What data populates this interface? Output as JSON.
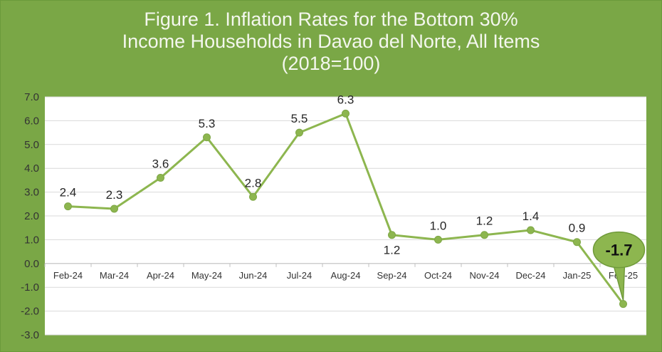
{
  "chart_data": {
    "type": "line",
    "title_lines": [
      "Figure 1. Inflation Rates for the Bottom 30%",
      "Income Households in Davao del Norte, All Items",
      "(2018=100)"
    ],
    "categories": [
      "Feb-24",
      "Mar-24",
      "Apr-24",
      "May-24",
      "Jun-24",
      "Jul-24",
      "Aug-24",
      "Sep-24",
      "Oct-24",
      "Nov-24",
      "Dec-24",
      "Jan-25",
      "Feb-25"
    ],
    "values": [
      2.4,
      2.3,
      3.6,
      5.3,
      2.8,
      5.5,
      6.3,
      1.2,
      1.0,
      1.2,
      1.4,
      0.9,
      -1.7
    ],
    "data_labels": [
      "2.4",
      "2.3",
      "3.6",
      "5.3",
      "2.8",
      "5.5",
      "6.3",
      "1.2",
      "1.0",
      "1.2",
      "1.4",
      "0.9",
      "-1.7"
    ],
    "label_positions": [
      "above",
      "above",
      "above",
      "above",
      "above",
      "above",
      "above",
      "below",
      "above",
      "above",
      "above",
      "above",
      "callout"
    ],
    "ylim": [
      -3.0,
      7.0
    ],
    "yticks": [
      "-3.0",
      "-2.0",
      "-1.0",
      "0.0",
      "1.0",
      "2.0",
      "3.0",
      "4.0",
      "5.0",
      "6.0",
      "7.0"
    ],
    "grid": "horizontal",
    "line_color": "#8db64f",
    "marker_color": "#8db64f",
    "callout_fill": "#8db64f",
    "background_color": "#7aa746",
    "plot_background": "#ffffff"
  }
}
